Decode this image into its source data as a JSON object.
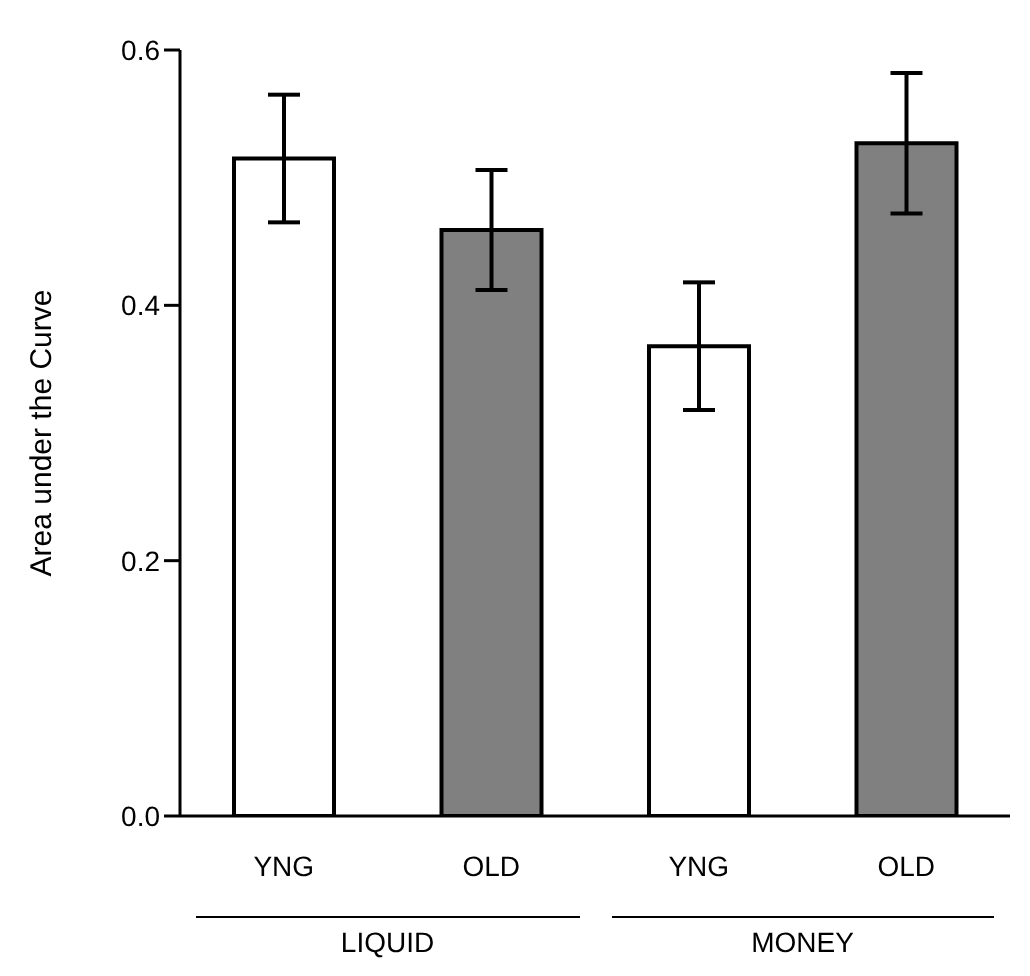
{
  "chart_data": {
    "type": "bar",
    "ylabel": "Area under the Curve",
    "categories": [
      "YNG",
      "OLD",
      "YNG",
      "OLD"
    ],
    "values": [
      0.515,
      0.459,
      0.368,
      0.527
    ],
    "errors": [
      0.05,
      0.047,
      0.05,
      0.055
    ],
    "colors": [
      "#ffffff",
      "#808080",
      "#ffffff",
      "#808080"
    ],
    "ylim": [
      0,
      0.6
    ],
    "yticks": [
      {
        "value": 0,
        "label": "0.0"
      },
      {
        "value": 0.2,
        "label": "0.2"
      },
      {
        "value": 0.4,
        "label": "0.4"
      },
      {
        "value": 0.6,
        "label": "0.6"
      }
    ],
    "annotations": [
      "LIQUID",
      "MONEY"
    ],
    "grid": false,
    "legend": false
  }
}
